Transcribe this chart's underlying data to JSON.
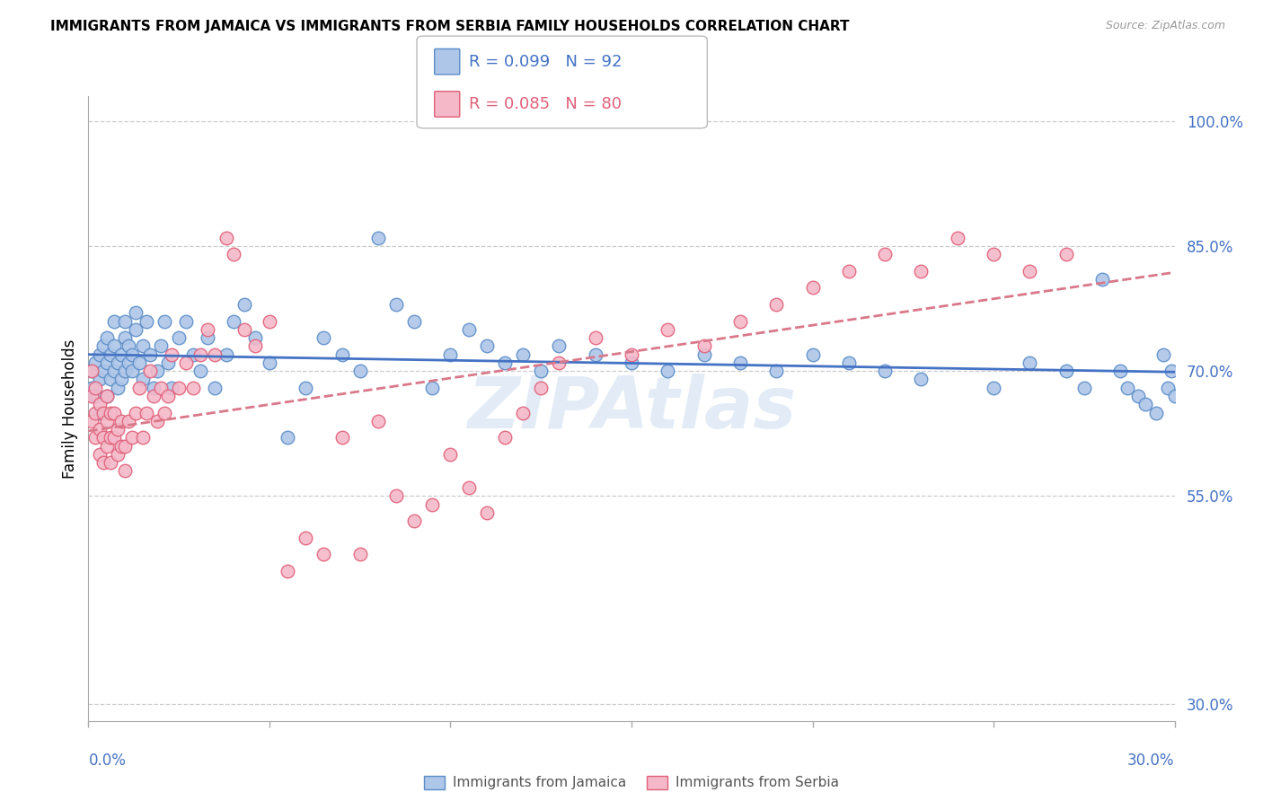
{
  "title": "IMMIGRANTS FROM JAMAICA VS IMMIGRANTS FROM SERBIA FAMILY HOUSEHOLDS CORRELATION CHART",
  "source": "Source: ZipAtlas.com",
  "ylabel": "Family Households",
  "jamaica_R": 0.099,
  "jamaica_N": 92,
  "serbia_R": 0.085,
  "serbia_N": 80,
  "jamaica_color": "#aec6e8",
  "jamaica_edge_color": "#5b8dc8",
  "serbia_color": "#f4b8c8",
  "serbia_edge_color": "#e0607a",
  "jamaica_line_color": "#4472c4",
  "serbia_line_color": "#d9788a",
  "watermark": "ZIPAtlas",
  "xmin": 0.0,
  "xmax": 0.3,
  "ymin": 0.28,
  "ymax": 1.03,
  "yticks": [
    0.3,
    0.55,
    0.7,
    0.85,
    1.0
  ],
  "ytick_labels": [
    "30.0%",
    "55.0%",
    "70.0%",
    "85.0%",
    "100.0%"
  ],
  "jamaica_scatter_x": [
    0.001,
    0.001,
    0.002,
    0.002,
    0.003,
    0.003,
    0.003,
    0.004,
    0.004,
    0.005,
    0.005,
    0.005,
    0.006,
    0.006,
    0.007,
    0.007,
    0.007,
    0.008,
    0.008,
    0.009,
    0.009,
    0.01,
    0.01,
    0.01,
    0.011,
    0.011,
    0.012,
    0.012,
    0.013,
    0.013,
    0.014,
    0.015,
    0.015,
    0.016,
    0.017,
    0.018,
    0.019,
    0.02,
    0.021,
    0.022,
    0.023,
    0.025,
    0.027,
    0.029,
    0.031,
    0.033,
    0.035,
    0.038,
    0.04,
    0.043,
    0.046,
    0.05,
    0.055,
    0.06,
    0.065,
    0.07,
    0.075,
    0.08,
    0.085,
    0.09,
    0.095,
    0.1,
    0.105,
    0.11,
    0.115,
    0.12,
    0.125,
    0.13,
    0.14,
    0.15,
    0.16,
    0.17,
    0.18,
    0.19,
    0.2,
    0.21,
    0.22,
    0.23,
    0.25,
    0.26,
    0.27,
    0.275,
    0.28,
    0.285,
    0.287,
    0.29,
    0.292,
    0.295,
    0.297,
    0.298,
    0.299,
    0.3
  ],
  "jamaica_scatter_y": [
    0.68,
    0.7,
    0.67,
    0.71,
    0.69,
    0.72,
    0.65,
    0.7,
    0.73,
    0.67,
    0.71,
    0.74,
    0.69,
    0.72,
    0.7,
    0.73,
    0.76,
    0.68,
    0.71,
    0.69,
    0.72,
    0.7,
    0.74,
    0.76,
    0.71,
    0.73,
    0.7,
    0.72,
    0.75,
    0.77,
    0.71,
    0.69,
    0.73,
    0.76,
    0.72,
    0.68,
    0.7,
    0.73,
    0.76,
    0.71,
    0.68,
    0.74,
    0.76,
    0.72,
    0.7,
    0.74,
    0.68,
    0.72,
    0.76,
    0.78,
    0.74,
    0.71,
    0.62,
    0.68,
    0.74,
    0.72,
    0.7,
    0.86,
    0.78,
    0.76,
    0.68,
    0.72,
    0.75,
    0.73,
    0.71,
    0.72,
    0.7,
    0.73,
    0.72,
    0.71,
    0.7,
    0.72,
    0.71,
    0.7,
    0.72,
    0.71,
    0.7,
    0.69,
    0.68,
    0.71,
    0.7,
    0.68,
    0.81,
    0.7,
    0.68,
    0.67,
    0.66,
    0.65,
    0.72,
    0.68,
    0.7,
    0.67
  ],
  "serbia_scatter_x": [
    0.001,
    0.001,
    0.001,
    0.002,
    0.002,
    0.002,
    0.003,
    0.003,
    0.003,
    0.004,
    0.004,
    0.004,
    0.005,
    0.005,
    0.005,
    0.006,
    0.006,
    0.006,
    0.007,
    0.007,
    0.008,
    0.008,
    0.009,
    0.009,
    0.01,
    0.01,
    0.011,
    0.012,
    0.013,
    0.014,
    0.015,
    0.016,
    0.017,
    0.018,
    0.019,
    0.02,
    0.021,
    0.022,
    0.023,
    0.025,
    0.027,
    0.029,
    0.031,
    0.033,
    0.035,
    0.038,
    0.04,
    0.043,
    0.046,
    0.05,
    0.055,
    0.06,
    0.065,
    0.07,
    0.075,
    0.08,
    0.085,
    0.09,
    0.095,
    0.1,
    0.105,
    0.11,
    0.115,
    0.12,
    0.125,
    0.13,
    0.14,
    0.15,
    0.16,
    0.17,
    0.18,
    0.19,
    0.2,
    0.21,
    0.22,
    0.23,
    0.24,
    0.25,
    0.26,
    0.27
  ],
  "serbia_scatter_y": [
    0.64,
    0.67,
    0.7,
    0.62,
    0.65,
    0.68,
    0.6,
    0.63,
    0.66,
    0.59,
    0.62,
    0.65,
    0.61,
    0.64,
    0.67,
    0.59,
    0.62,
    0.65,
    0.62,
    0.65,
    0.6,
    0.63,
    0.61,
    0.64,
    0.58,
    0.61,
    0.64,
    0.62,
    0.65,
    0.68,
    0.62,
    0.65,
    0.7,
    0.67,
    0.64,
    0.68,
    0.65,
    0.67,
    0.72,
    0.68,
    0.71,
    0.68,
    0.72,
    0.75,
    0.72,
    0.86,
    0.84,
    0.75,
    0.73,
    0.76,
    0.46,
    0.5,
    0.48,
    0.62,
    0.48,
    0.64,
    0.55,
    0.52,
    0.54,
    0.6,
    0.56,
    0.53,
    0.62,
    0.65,
    0.68,
    0.71,
    0.74,
    0.72,
    0.75,
    0.73,
    0.76,
    0.78,
    0.8,
    0.82,
    0.84,
    0.82,
    0.86,
    0.84,
    0.82,
    0.84
  ]
}
